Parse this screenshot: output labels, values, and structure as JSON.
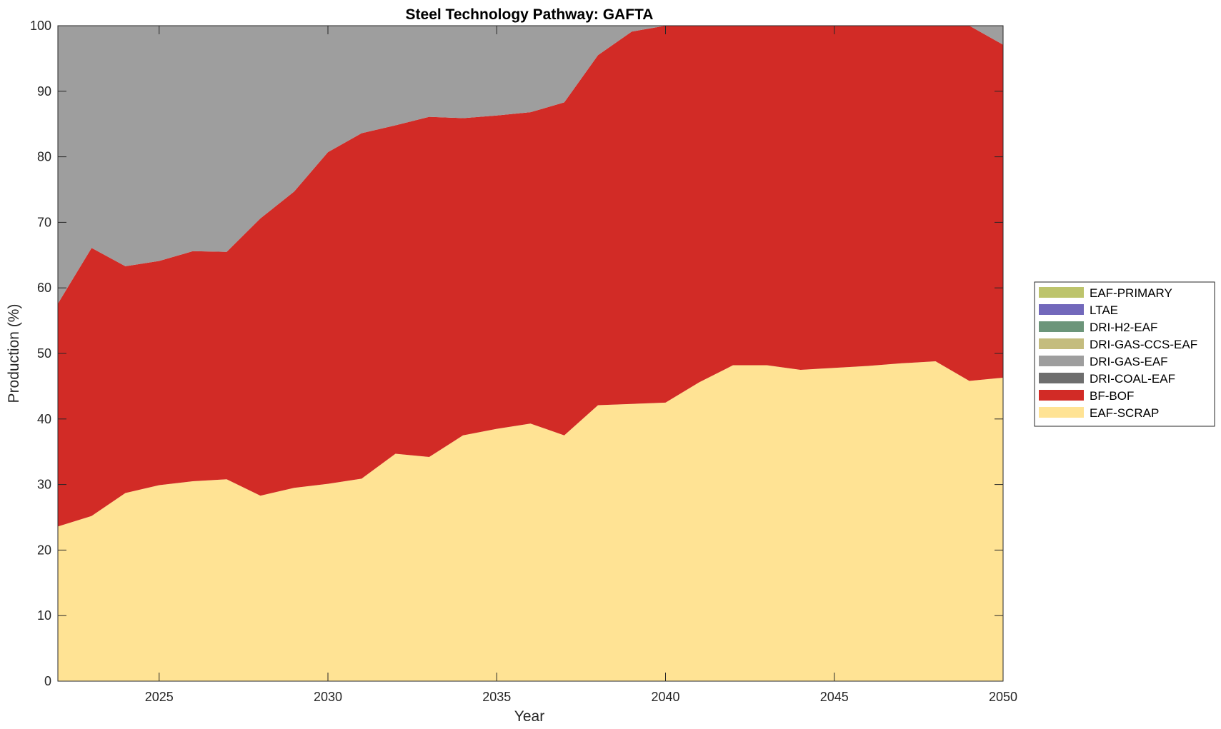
{
  "chart_data": {
    "type": "area",
    "stacked": true,
    "title": "Steel Technology Pathway: GAFTA",
    "xlabel": "Year",
    "ylabel": "Production (%)",
    "xlim": [
      2022,
      2050
    ],
    "ylim": [
      0,
      100
    ],
    "xticks": [
      2025,
      2030,
      2035,
      2040,
      2045,
      2050
    ],
    "yticks": [
      0,
      10,
      20,
      30,
      40,
      50,
      60,
      70,
      80,
      90,
      100
    ],
    "grid": false,
    "legend_position": "right",
    "x": [
      2022,
      2023,
      2024,
      2025,
      2026,
      2027,
      2028,
      2029,
      2030,
      2031,
      2032,
      2033,
      2034,
      2035,
      2036,
      2037,
      2038,
      2039,
      2040,
      2041,
      2042,
      2043,
      2044,
      2045,
      2046,
      2047,
      2048,
      2049,
      2050
    ],
    "series": [
      {
        "name": "EAF-SCRAP",
        "color": "#FFE394",
        "values": [
          23.6,
          25.2,
          28.7,
          29.9,
          30.5,
          30.8,
          28.3,
          29.5,
          30.1,
          30.9,
          34.7,
          34.2,
          37.5,
          38.5,
          39.3,
          37.5,
          42.1,
          42.3,
          42.5,
          45.6,
          48.2,
          48.2,
          47.5,
          47.8,
          48.1,
          48.5,
          48.8,
          45.8,
          46.3
        ]
      },
      {
        "name": "BF-BOF",
        "color": "#D22B26",
        "values": [
          34.0,
          40.9,
          34.6,
          34.2,
          35.1,
          34.7,
          42.3,
          45.2,
          50.6,
          52.7,
          50.1,
          51.9,
          48.4,
          47.8,
          47.5,
          50.8,
          53.4,
          56.8,
          57.5,
          54.4,
          51.8,
          51.8,
          52.5,
          52.2,
          51.9,
          51.5,
          51.2,
          54.2,
          50.8
        ]
      },
      {
        "name": "DRI-COAL-EAF",
        "color": "#6E6E6E",
        "values": [
          0,
          0,
          0,
          0,
          0,
          0,
          0,
          0,
          0,
          0,
          0,
          0,
          0,
          0,
          0,
          0,
          0,
          0,
          0,
          0,
          0,
          0,
          0,
          0,
          0,
          0,
          0,
          0,
          0
        ]
      },
      {
        "name": "DRI-GAS-EAF",
        "color": "#9E9E9E",
        "values": [
          42.4,
          33.9,
          36.7,
          35.9,
          34.4,
          34.5,
          29.4,
          25.3,
          19.3,
          16.4,
          15.2,
          13.9,
          14.1,
          13.7,
          13.2,
          11.7,
          4.5,
          0.9,
          0.0,
          0,
          0,
          0,
          0,
          0,
          0,
          0,
          0,
          0,
          2.9
        ]
      },
      {
        "name": "DRI-GAS-CCS-EAF",
        "color": "#C4BC7E",
        "values": [
          0,
          0,
          0,
          0,
          0,
          0,
          0,
          0,
          0,
          0,
          0,
          0,
          0,
          0,
          0,
          0,
          0,
          0,
          0,
          0,
          0,
          0,
          0,
          0,
          0,
          0,
          0,
          0,
          0
        ]
      },
      {
        "name": "DRI-H2-EAF",
        "color": "#6C957A",
        "values": [
          0,
          0,
          0,
          0,
          0,
          0,
          0,
          0,
          0,
          0,
          0,
          0,
          0,
          0,
          0,
          0,
          0,
          0,
          0,
          0,
          0,
          0,
          0,
          0,
          0,
          0,
          0,
          0,
          0
        ]
      },
      {
        "name": "LTAE",
        "color": "#7268BB",
        "values": [
          0,
          0,
          0,
          0,
          0,
          0,
          0,
          0,
          0,
          0,
          0,
          0,
          0,
          0,
          0,
          0,
          0,
          0,
          0,
          0,
          0,
          0,
          0,
          0,
          0,
          0,
          0,
          0,
          0
        ]
      },
      {
        "name": "EAF-PRIMARY",
        "color": "#BDC46C",
        "values": [
          0,
          0,
          0,
          0,
          0,
          0,
          0,
          0,
          0,
          0,
          0,
          0,
          0,
          0,
          0,
          0,
          0,
          0,
          0,
          0,
          0,
          0,
          0,
          0,
          0,
          0,
          0,
          0,
          0
        ]
      }
    ],
    "legend_order": [
      "EAF-PRIMARY",
      "LTAE",
      "DRI-H2-EAF",
      "DRI-GAS-CCS-EAF",
      "DRI-GAS-EAF",
      "DRI-COAL-EAF",
      "BF-BOF",
      "EAF-SCRAP"
    ]
  }
}
